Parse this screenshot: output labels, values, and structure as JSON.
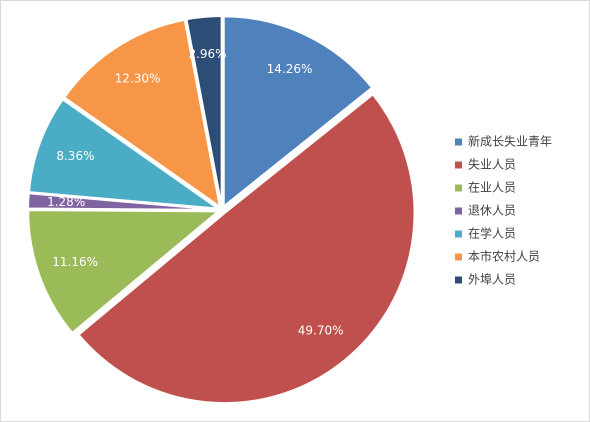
{
  "chart_data": {
    "type": "pie",
    "categories": [
      "新成长失业青年",
      "失业人员",
      "在业人员",
      "退休人员",
      "在学人员",
      "本市农村人员",
      "外埠人员"
    ],
    "values": [
      14.26,
      49.7,
      11.16,
      1.28,
      8.36,
      12.3,
      2.96
    ],
    "value_labels": [
      "14.26%",
      "49.70%",
      "11.16%",
      "1.28%",
      "8.36%",
      "12.30%",
      "2.96%"
    ],
    "colors": [
      "#4f81bd",
      "#c0504d",
      "#9bbb59",
      "#8064a2",
      "#4bacc6",
      "#f79646",
      "#2c4d75"
    ],
    "legend": "right"
  }
}
